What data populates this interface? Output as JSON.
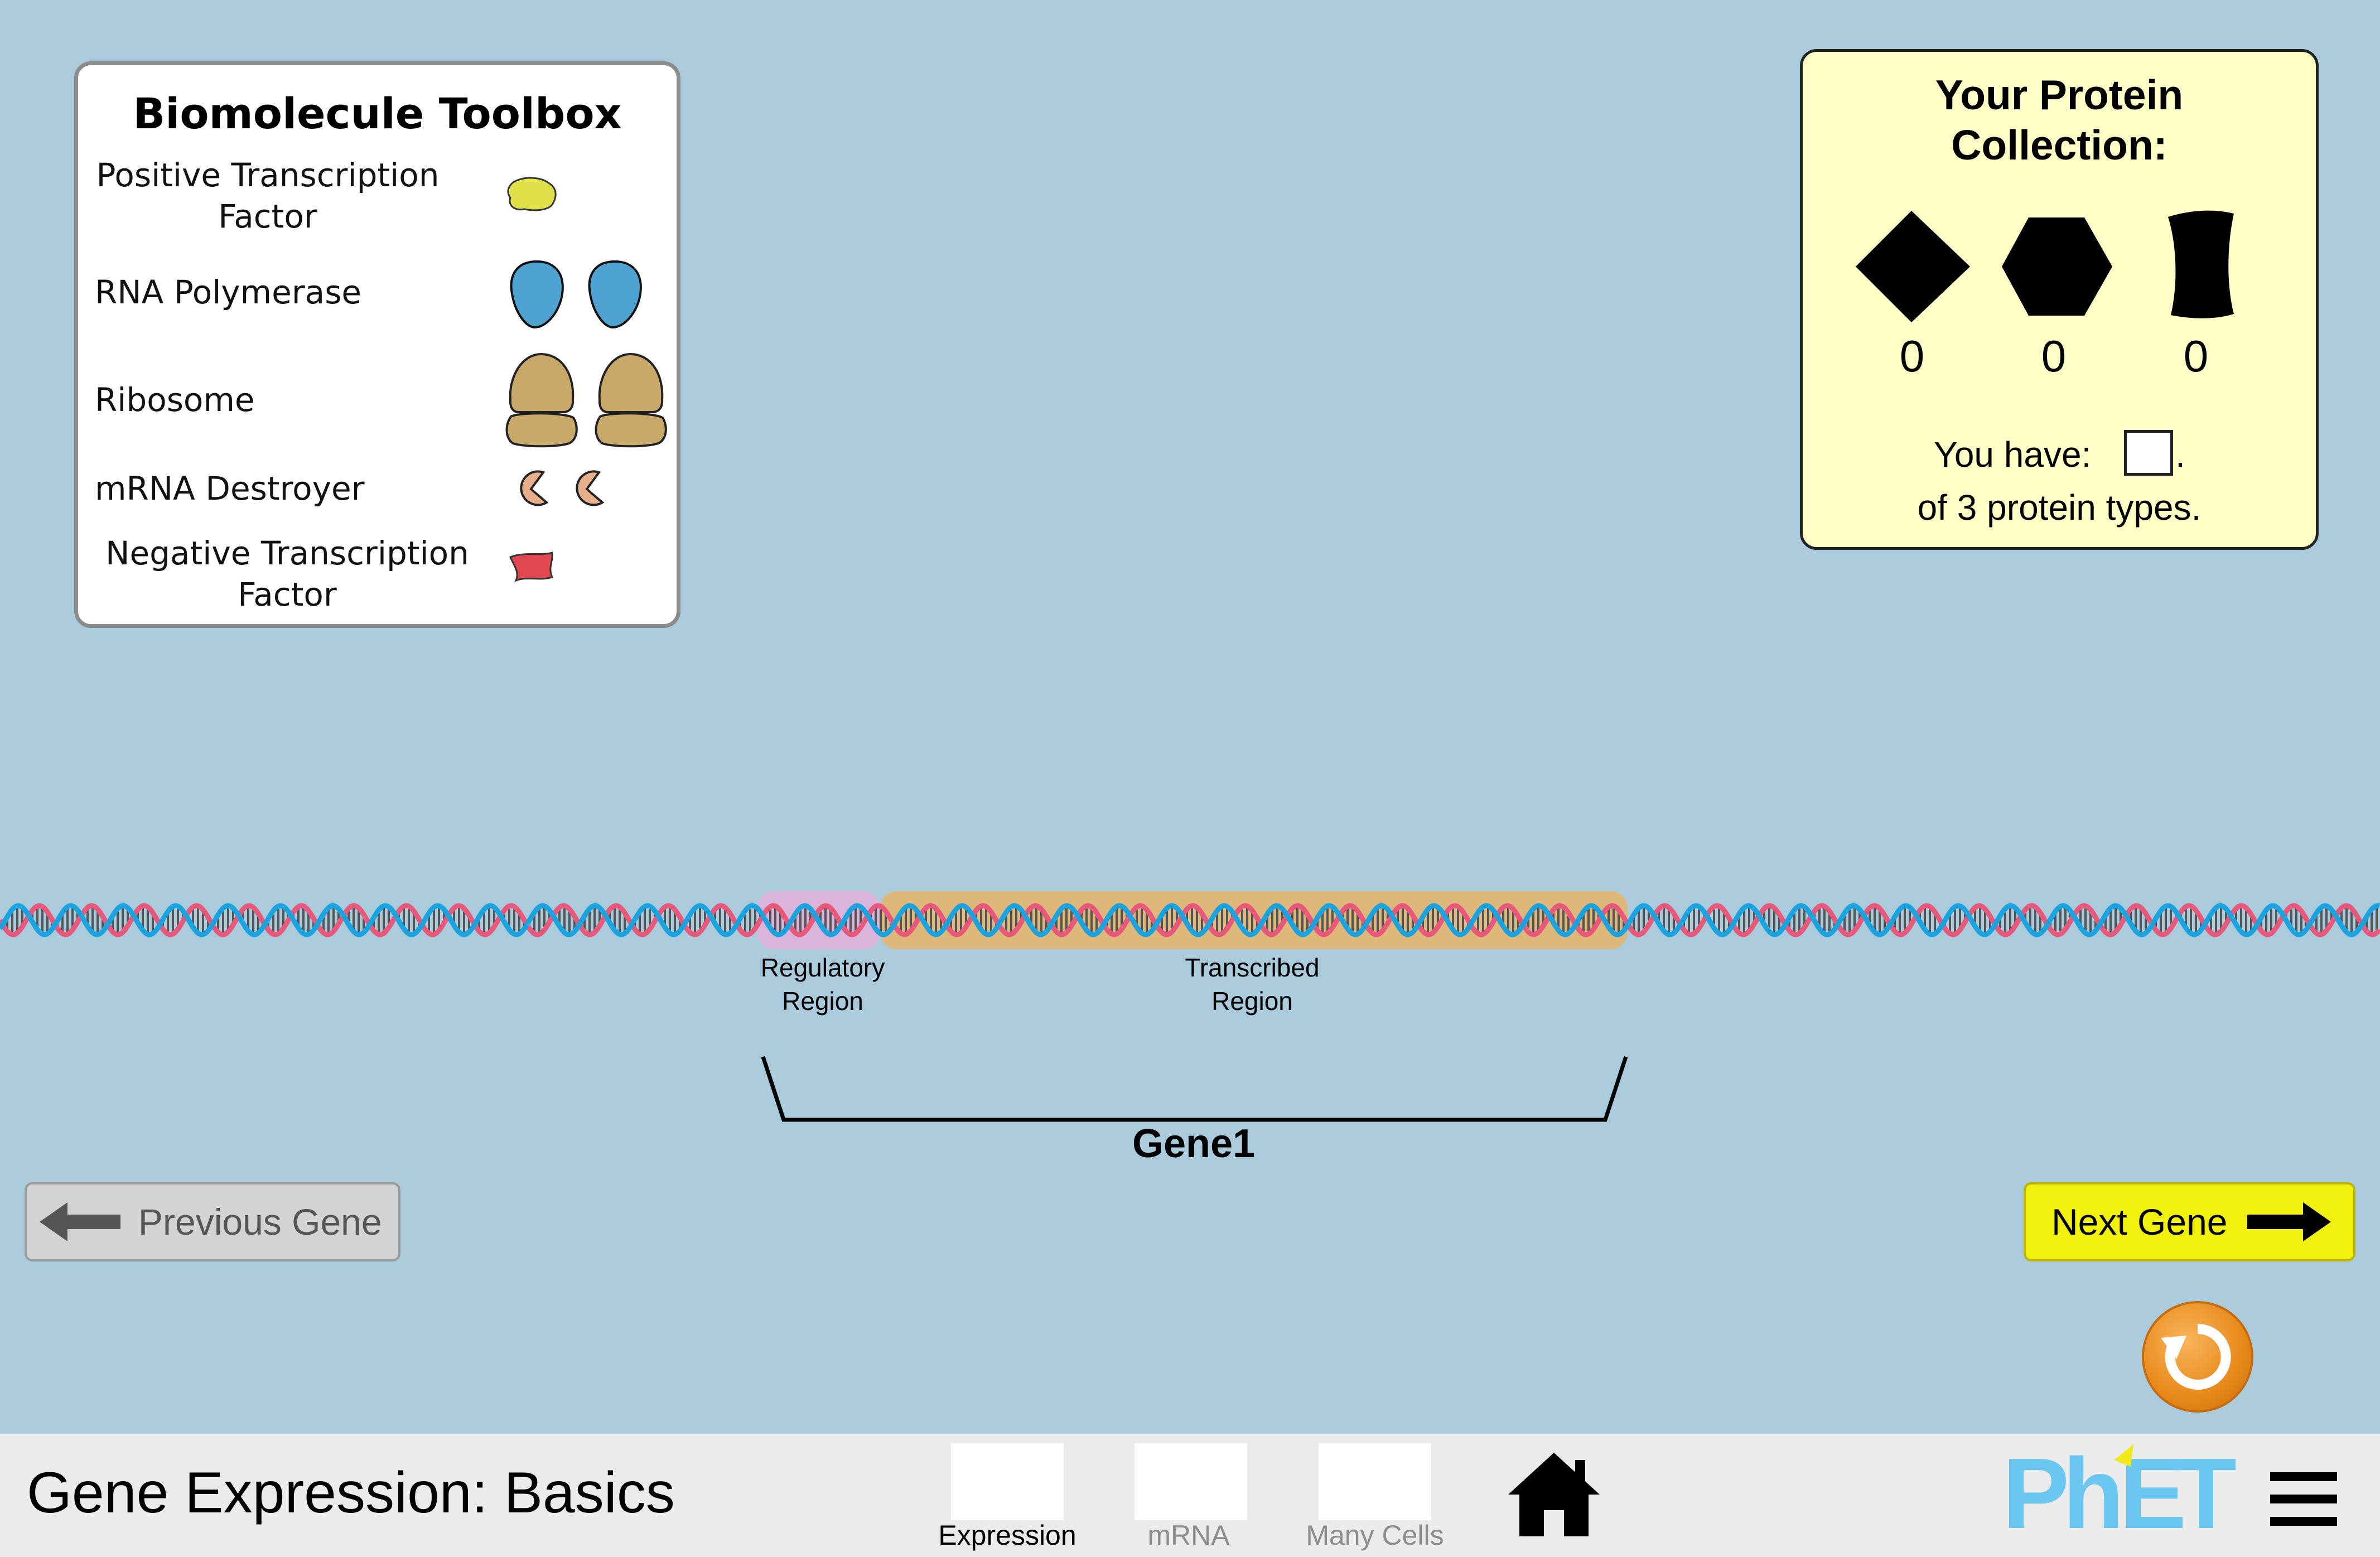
{
  "toolbox": {
    "title": "Biomolecule Toolbox",
    "items": [
      {
        "label_line1": "Positive Transcription",
        "label_line2": "Factor",
        "icon": "positive-transcription-factor"
      },
      {
        "label_line1": "RNA Polymerase",
        "icon": "rna-polymerase"
      },
      {
        "label_line1": "Ribosome",
        "icon": "ribosome"
      },
      {
        "label_line1": "mRNA Destroyer",
        "icon": "mrna-destroyer"
      },
      {
        "label_line1": "Negative Transcription",
        "label_line2": "Factor",
        "icon": "negative-transcription-factor"
      }
    ]
  },
  "collection": {
    "title_line1": "Your Protein",
    "title_line2": "Collection:",
    "proteins": [
      {
        "shape": "diamond",
        "count": "0"
      },
      {
        "shape": "hexagon",
        "count": "0"
      },
      {
        "shape": "concave-rectangle",
        "count": "0"
      }
    ],
    "have_prefix": "You have:",
    "have_suffix": ".",
    "have_line2": "of 3 protein types."
  },
  "dna": {
    "regulatory_line1": "Regulatory",
    "regulatory_line2": "Region",
    "transcribed_line1": "Transcribed",
    "transcribed_line2": "Region",
    "gene_label": "Gene1",
    "colors": {
      "strand_a": "#e8587a",
      "strand_b": "#1ba3e0",
      "regulatory": "#e4b0d8",
      "transcribed": "#e8b46a"
    }
  },
  "buttons": {
    "previous": "Previous Gene",
    "next": "Next Gene"
  },
  "navbar": {
    "title": "Gene Expression: Basics",
    "screens": [
      "Expression",
      "mRNA",
      "Many Cells"
    ],
    "logo": "PhET"
  }
}
